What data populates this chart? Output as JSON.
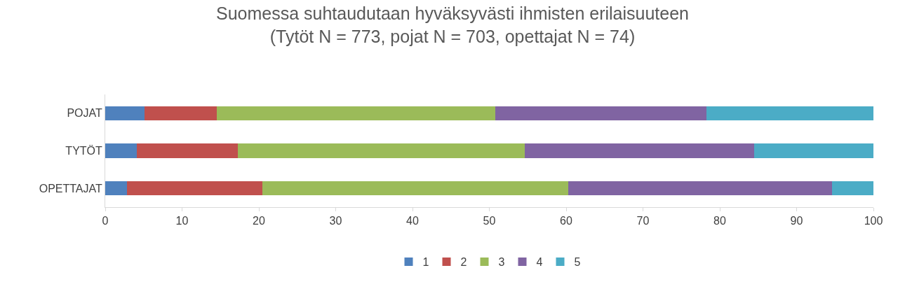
{
  "chart_data": {
    "type": "bar",
    "orientation": "horizontal",
    "stacked": true,
    "title": "Suomessa suhtaudutaan hyväksyvästi ihmisten erilaisuuteen\n(Tytöt N = 773, pojat N = 703, opettajat N = 74)",
    "categories": [
      "POJAT",
      "TYTÖT",
      "OPETTAJAT"
    ],
    "series": [
      {
        "name": "1",
        "color": "#4f81bd",
        "values": [
          5.1,
          4.1,
          2.8
        ]
      },
      {
        "name": "2",
        "color": "#c0504d",
        "values": [
          9.4,
          13.2,
          17.7
        ]
      },
      {
        "name": "3",
        "color": "#9bbb59",
        "values": [
          36.3,
          37.3,
          39.8
        ]
      },
      {
        "name": "4",
        "color": "#8064a2",
        "values": [
          27.5,
          29.9,
          34.3
        ]
      },
      {
        "name": "5",
        "color": "#4bacc6",
        "values": [
          21.7,
          15.5,
          5.4
        ]
      }
    ],
    "xlim": [
      0,
      100
    ],
    "xticks": [
      0,
      10,
      20,
      30,
      40,
      50,
      60,
      70,
      80,
      90,
      100
    ],
    "grid": false,
    "legend": "bottom"
  }
}
